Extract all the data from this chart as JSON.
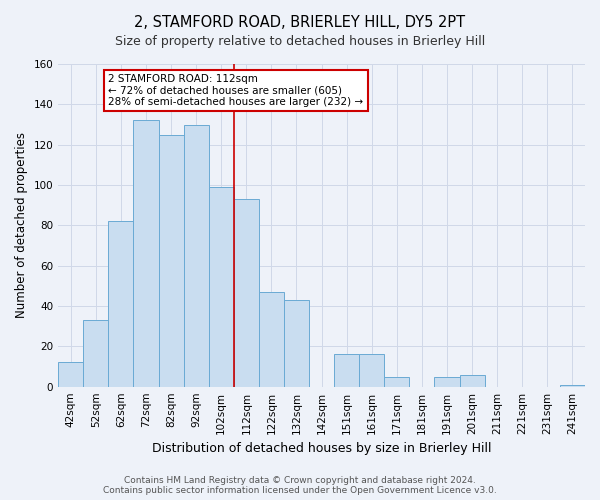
{
  "title": "2, STAMFORD ROAD, BRIERLEY HILL, DY5 2PT",
  "subtitle": "Size of property relative to detached houses in Brierley Hill",
  "xlabel": "Distribution of detached houses by size in Brierley Hill",
  "ylabel": "Number of detached properties",
  "bar_labels": [
    "42sqm",
    "52sqm",
    "62sqm",
    "72sqm",
    "82sqm",
    "92sqm",
    "102sqm",
    "112sqm",
    "122sqm",
    "132sqm",
    "142sqm",
    "151sqm",
    "161sqm",
    "171sqm",
    "181sqm",
    "191sqm",
    "201sqm",
    "211sqm",
    "221sqm",
    "231sqm",
    "241sqm"
  ],
  "bar_values": [
    12,
    33,
    82,
    132,
    125,
    130,
    99,
    93,
    47,
    43,
    0,
    16,
    16,
    5,
    0,
    5,
    6,
    0,
    0,
    0,
    1
  ],
  "bar_color": "#c9ddf0",
  "bar_edge_color": "#6aaad4",
  "marker_label_line1": "2 STAMFORD ROAD: 112sqm",
  "marker_label_line2": "← 72% of detached houses are smaller (605)",
  "marker_label_line3": "28% of semi-detached houses are larger (232) →",
  "marker_color": "#cc0000",
  "ylim": [
    0,
    160
  ],
  "yticks": [
    0,
    20,
    40,
    60,
    80,
    100,
    120,
    140,
    160
  ],
  "grid_color": "#d0d8e8",
  "background_color": "#eef2f9",
  "footer_line1": "Contains HM Land Registry data © Crown copyright and database right 2024.",
  "footer_line2": "Contains public sector information licensed under the Open Government Licence v3.0.",
  "title_fontsize": 10.5,
  "subtitle_fontsize": 9,
  "axis_label_fontsize": 8.5,
  "tick_fontsize": 7.5,
  "footer_fontsize": 6.5
}
